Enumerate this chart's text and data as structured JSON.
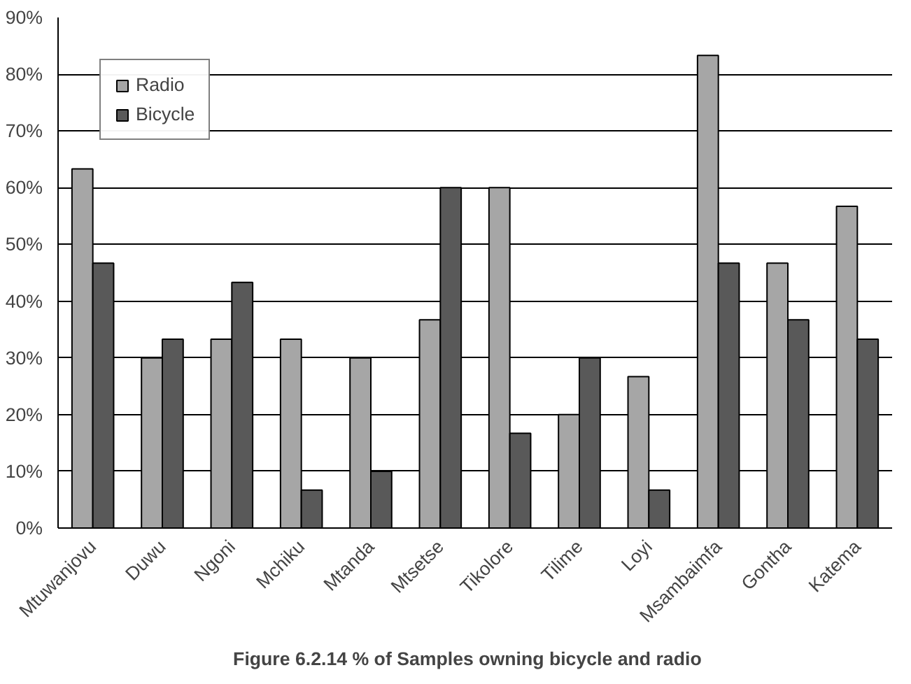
{
  "chart_data": {
    "type": "bar",
    "title": "Figure 6.2.14    % of Samples owning bicycle and radio",
    "categories": [
      "Mtuwanjovu",
      "Duwu",
      "Ngoni",
      "Mchiku",
      "Mtanda",
      "Mtsetse",
      "Tikolore",
      "Tilime",
      "Loyi",
      "Msambaimfa",
      "Gontha",
      "Katema"
    ],
    "series": [
      {
        "name": "Radio",
        "color": "#a6a6a6",
        "values": [
          63.3,
          30,
          33.3,
          33.3,
          30,
          36.7,
          60,
          20,
          26.7,
          83.3,
          46.7,
          56.7
        ]
      },
      {
        "name": "Bicycle",
        "color": "#595959",
        "values": [
          46.7,
          33.3,
          43.3,
          6.7,
          10,
          60,
          16.7,
          30,
          6.7,
          46.7,
          36.7,
          33.3
        ]
      }
    ],
    "ylim": [
      0,
      90
    ],
    "yticks": [
      {
        "value": 0,
        "label": "0%"
      },
      {
        "value": 10,
        "label": "10%"
      },
      {
        "value": 20,
        "label": "20%"
      },
      {
        "value": 30,
        "label": "30%"
      },
      {
        "value": 40,
        "label": "40%"
      },
      {
        "value": 50,
        "label": "50%"
      },
      {
        "value": 60,
        "label": "60%"
      },
      {
        "value": 70,
        "label": "70%"
      },
      {
        "value": 80,
        "label": "80%"
      },
      {
        "value": 90,
        "label": "90%"
      }
    ],
    "grid": "y",
    "legend": "top left"
  }
}
